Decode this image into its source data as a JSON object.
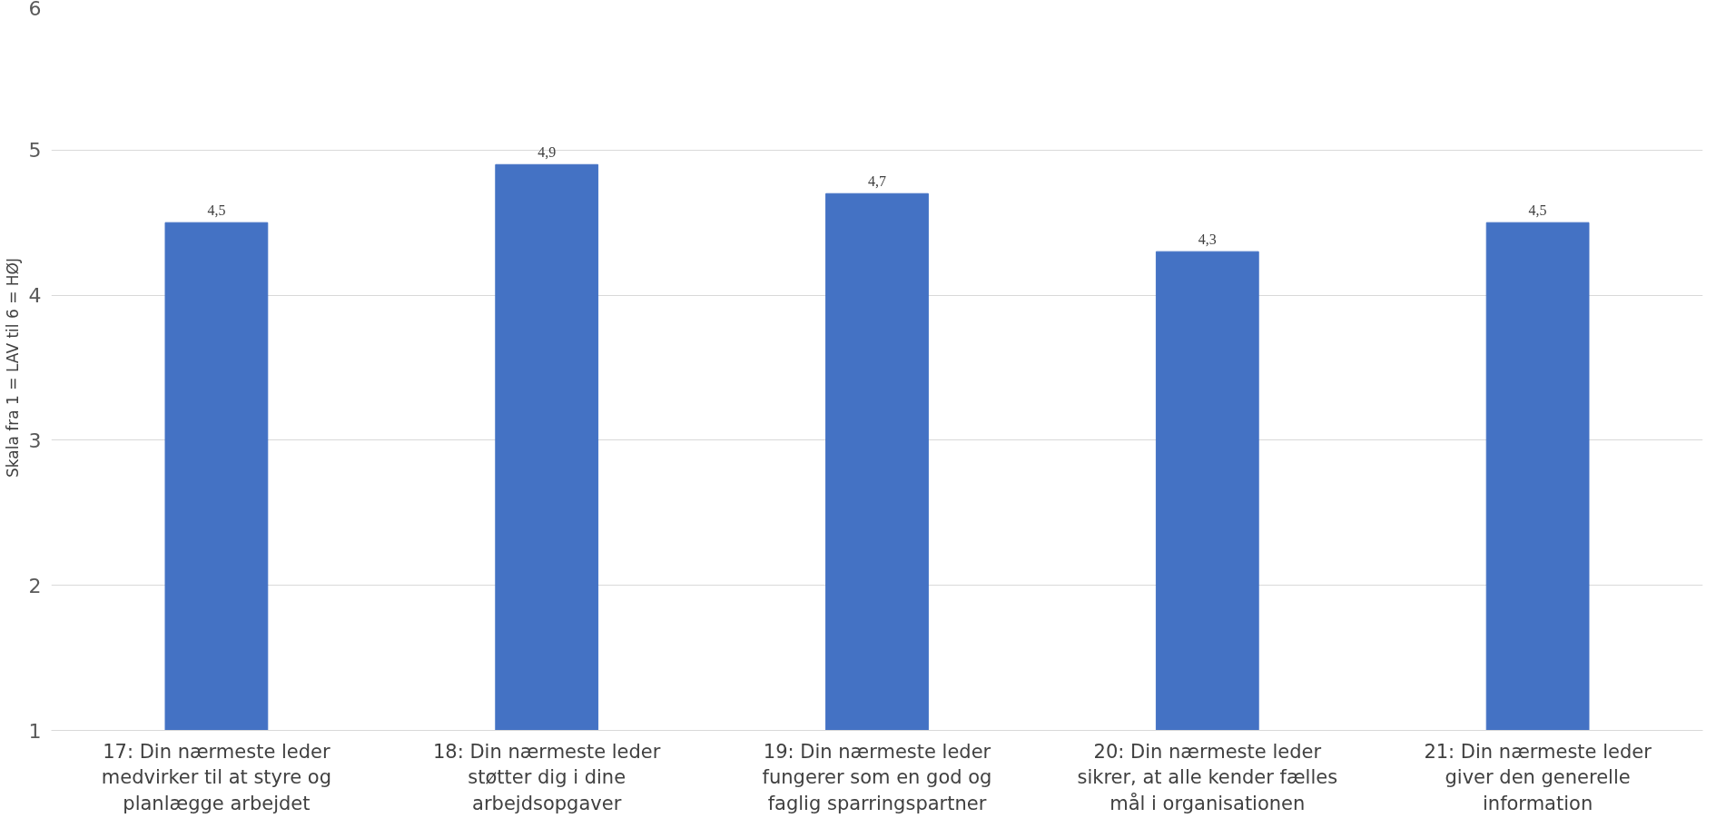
{
  "chart_data": {
    "type": "bar",
    "ylabel": "Skala fra 1 = LAV til 6 = HØJ",
    "categories": [
      "17: Din nærmeste leder\nmedvirker til at styre og\nplanlægge arbejdet",
      "18: Din nærmeste leder\nstøtter dig i dine\narbejdsopgaver",
      "19: Din nærmeste leder\nfungerer som en god og\nfaglig sparringspartner",
      "20: Din nærmeste leder\nsikrer, at alle kender fælles\nmål i organisationen",
      "21: Din nærmeste leder\ngiver den generelle\ninformation"
    ],
    "values": [
      4.5,
      4.9,
      4.7,
      4.3,
      4.5
    ],
    "value_labels": [
      "4,5",
      "4,9",
      "4,7",
      "4,3",
      "4,5"
    ],
    "color": "#4472c4",
    "ylim": [
      1,
      6
    ],
    "yticks": [
      1,
      2,
      3,
      4,
      5,
      6
    ],
    "grid": "y"
  }
}
